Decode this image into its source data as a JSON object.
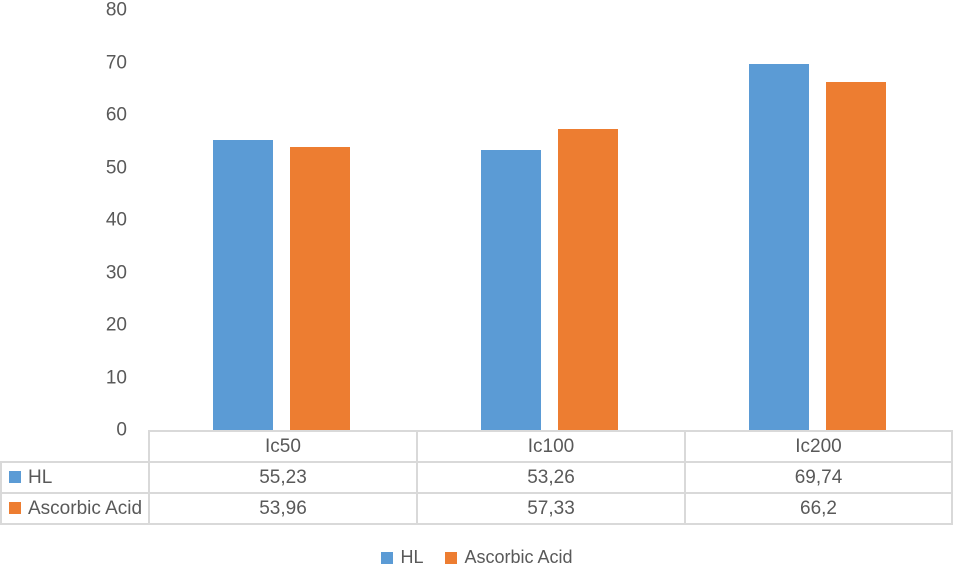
{
  "chart_data": {
    "type": "bar",
    "title": "",
    "xlabel": "",
    "ylabel": "",
    "categories": [
      "Ic50",
      "Ic100",
      "Ic200"
    ],
    "series": [
      {
        "name": "HL",
        "color": "#5B9BD5",
        "values": [
          55.23,
          53.26,
          69.74
        ],
        "display_values": [
          "55,23",
          "53,26",
          "69,74"
        ]
      },
      {
        "name": "Ascorbic Acid",
        "color": "#ED7D31",
        "values": [
          53.96,
          57.33,
          66.2
        ],
        "display_values": [
          "53,96",
          "57,33",
          "66,2"
        ]
      }
    ],
    "ylim": [
      0,
      80
    ],
    "ytick_step": 10,
    "ytick_labels": [
      "0",
      "10",
      "20",
      "30",
      "40",
      "50",
      "60",
      "70",
      "80"
    ],
    "grid": false,
    "legend_position": "bottom",
    "has_data_table": true
  },
  "style": {
    "text_color": "#595959",
    "border_color": "#D9D9D9",
    "background": "#FFFFFF"
  }
}
